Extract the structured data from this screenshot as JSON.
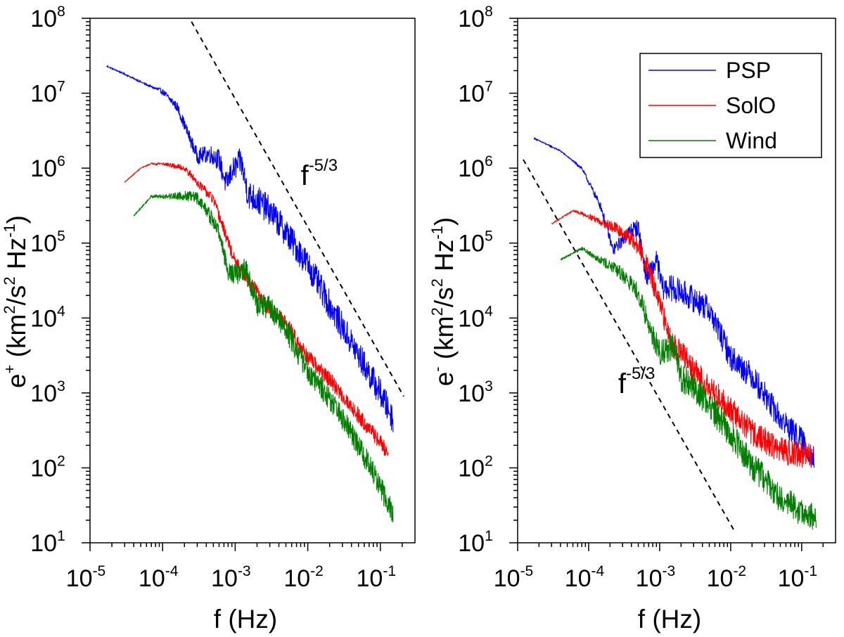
{
  "chart_data": [
    {
      "type": "line",
      "panel": "left",
      "xlabel": "f (Hz)",
      "ylabel": {
        "prefix": "e",
        "sup": "+",
        "unit": "(km",
        "sup2": "2",
        "mid": "/s",
        "sup3": "2",
        "hz": " Hz",
        "sup4": "-1",
        "close": ")"
      },
      "xscale": "log",
      "yscale": "log",
      "xlim": [
        1e-05,
        0.3
      ],
      "ylim": [
        10,
        100000000
      ],
      "xticks": [
        {
          "base": "10",
          "exp": "-5"
        },
        {
          "base": "10",
          "exp": "-4"
        },
        {
          "base": "10",
          "exp": "-3"
        },
        {
          "base": "10",
          "exp": "-2"
        },
        {
          "base": "10",
          "exp": "-1"
        }
      ],
      "yticks": [
        {
          "base": "10",
          "exp": "1"
        },
        {
          "base": "10",
          "exp": "2"
        },
        {
          "base": "10",
          "exp": "3"
        },
        {
          "base": "10",
          "exp": "4"
        },
        {
          "base": "10",
          "exp": "5"
        },
        {
          "base": "10",
          "exp": "6"
        },
        {
          "base": "10",
          "exp": "7"
        },
        {
          "base": "10",
          "exp": "8"
        }
      ],
      "reference_line": {
        "label": "f",
        "label_exp": "-5/3",
        "points": [
          [
            0.00025,
            90000000
          ],
          [
            0.21,
            900
          ]
        ],
        "label_at": [
          0.008,
          600000
        ]
      },
      "series": [
        {
          "name": "PSP",
          "color": "#0000ff",
          "noise": 0.11,
          "fmax": 0.15,
          "points": [
            [
              1.7e-05,
              23000000
            ],
            [
              3e-05,
              18000000
            ],
            [
              6e-05,
              13000000
            ],
            [
              0.0001,
              10500000
            ],
            [
              0.00016,
              6500000
            ],
            [
              0.00022,
              3000000
            ],
            [
              0.0003,
              1450000
            ],
            [
              0.00045,
              1550000
            ],
            [
              0.0006,
              1300000
            ],
            [
              0.00075,
              600000
            ],
            [
              0.0009,
              900000
            ],
            [
              0.0012,
              1250000
            ],
            [
              0.0015,
              450000
            ],
            [
              0.002,
              380000
            ],
            [
              0.003,
              270000
            ],
            [
              0.005,
              140000
            ],
            [
              0.01,
              52000
            ],
            [
              0.02,
              15000
            ],
            [
              0.05,
              3200
            ],
            [
              0.1,
              1000
            ],
            [
              0.15,
              450
            ]
          ]
        },
        {
          "name": "SolO",
          "color": "#ff0000",
          "noise": 0.06,
          "fmax": 0.13,
          "points": [
            [
              3e-05,
              650000
            ],
            [
              5e-05,
              1000000
            ],
            [
              7e-05,
              1150000
            ],
            [
              0.0001,
              1150000
            ],
            [
              0.0002,
              1000000
            ],
            [
              0.0003,
              650000
            ],
            [
              0.0005,
              380000
            ],
            [
              0.0007,
              150000
            ],
            [
              0.001,
              55000
            ],
            [
              0.002,
              22000
            ],
            [
              0.003,
              13000
            ],
            [
              0.005,
              8500
            ],
            [
              0.01,
              3000
            ],
            [
              0.02,
              1500
            ],
            [
              0.05,
              500
            ],
            [
              0.1,
              220
            ],
            [
              0.13,
              150
            ]
          ]
        },
        {
          "name": "Wind",
          "color": "#007f00",
          "noise": 0.09,
          "fmax": 0.15,
          "points": [
            [
              4e-05,
              230000
            ],
            [
              7e-05,
              420000
            ],
            [
              0.0001,
              420000
            ],
            [
              0.0002,
              430000
            ],
            [
              0.0003,
              400000
            ],
            [
              0.0004,
              280000
            ],
            [
              0.0006,
              140000
            ],
            [
              0.0008,
              42000
            ],
            [
              0.001,
              38000
            ],
            [
              0.0014,
              45000
            ],
            [
              0.002,
              15000
            ],
            [
              0.003,
              14000
            ],
            [
              0.005,
              7000
            ],
            [
              0.01,
              2000
            ],
            [
              0.02,
              850
            ],
            [
              0.05,
              200
            ],
            [
              0.1,
              55
            ],
            [
              0.15,
              25
            ]
          ]
        }
      ]
    },
    {
      "type": "line",
      "panel": "right",
      "xlabel": "f (Hz)",
      "ylabel": {
        "prefix": "e",
        "sup": "-",
        "unit": "(km",
        "sup2": "2",
        "mid": "/s",
        "sup3": "2",
        "hz": " Hz",
        "sup4": "-1",
        "close": ")"
      },
      "xscale": "log",
      "yscale": "log",
      "xlim": [
        1e-05,
        0.3
      ],
      "ylim": [
        10,
        100000000
      ],
      "xticks": [
        {
          "base": "10",
          "exp": "-5"
        },
        {
          "base": "10",
          "exp": "-4"
        },
        {
          "base": "10",
          "exp": "-3"
        },
        {
          "base": "10",
          "exp": "-2"
        },
        {
          "base": "10",
          "exp": "-1"
        }
      ],
      "yticks": [
        {
          "base": "10",
          "exp": "1"
        },
        {
          "base": "10",
          "exp": "2"
        },
        {
          "base": "10",
          "exp": "3"
        },
        {
          "base": "10",
          "exp": "4"
        },
        {
          "base": "10",
          "exp": "5"
        },
        {
          "base": "10",
          "exp": "6"
        },
        {
          "base": "10",
          "exp": "7"
        },
        {
          "base": "10",
          "exp": "8"
        }
      ],
      "reference_line": {
        "label": "f",
        "label_exp": "-5/3",
        "points": [
          [
            1.2e-05,
            1300000
          ],
          [
            0.011,
            15
          ]
        ],
        "label_at": [
          0.00026,
          1000
        ]
      },
      "legend": {
        "position": "top-right",
        "entries": [
          "PSP",
          "SolO",
          "Wind"
        ]
      },
      "series": [
        {
          "name": "PSP",
          "color": "#0000ff",
          "noise": 0.1,
          "fmax": 0.15,
          "points": [
            [
              1.7e-05,
              2500000
            ],
            [
              4e-05,
              1700000
            ],
            [
              8e-05,
              1000000
            ],
            [
              0.00015,
              300000
            ],
            [
              0.00022,
              80000
            ],
            [
              0.0003,
              110000
            ],
            [
              0.0004,
              150000
            ],
            [
              0.0005,
              160000
            ],
            [
              0.00065,
              35000
            ],
            [
              0.0008,
              45000
            ],
            [
              0.0009,
              60000
            ],
            [
              0.0011,
              25000
            ],
            [
              0.0015,
              25000
            ],
            [
              0.002,
              22000
            ],
            [
              0.003,
              18000
            ],
            [
              0.005,
              13000
            ],
            [
              0.01,
              3000
            ],
            [
              0.02,
              1700
            ],
            [
              0.05,
              450
            ],
            [
              0.1,
              230
            ],
            [
              0.15,
              130
            ]
          ]
        },
        {
          "name": "SolO",
          "color": "#ff0000",
          "noise": 0.1,
          "fmax": 0.14,
          "points": [
            [
              3e-05,
              180000
            ],
            [
              6e-05,
              270000
            ],
            [
              0.0001,
              230000
            ],
            [
              0.0002,
              170000
            ],
            [
              0.0003,
              140000
            ],
            [
              0.0005,
              90000
            ],
            [
              0.0007,
              45000
            ],
            [
              0.001,
              15000
            ],
            [
              0.0015,
              4500
            ],
            [
              0.002,
              3500
            ],
            [
              0.003,
              2000
            ],
            [
              0.005,
              1200
            ],
            [
              0.01,
              600
            ],
            [
              0.02,
              300
            ],
            [
              0.05,
              170
            ],
            [
              0.1,
              150
            ],
            [
              0.14,
              150
            ]
          ]
        },
        {
          "name": "Wind",
          "color": "#007f00",
          "noise": 0.11,
          "fmax": 0.16,
          "points": [
            [
              4e-05,
              60000
            ],
            [
              8e-05,
              85000
            ],
            [
              0.0001,
              75000
            ],
            [
              0.0002,
              50000
            ],
            [
              0.0003,
              38000
            ],
            [
              0.0005,
              22000
            ],
            [
              0.0007,
              8000
            ],
            [
              0.001,
              3500
            ],
            [
              0.0015,
              4200
            ],
            [
              0.002,
              1600
            ],
            [
              0.003,
              1200
            ],
            [
              0.005,
              700
            ],
            [
              0.01,
              280
            ],
            [
              0.02,
              110
            ],
            [
              0.05,
              40
            ],
            [
              0.1,
              25
            ],
            [
              0.16,
              20
            ]
          ]
        }
      ]
    }
  ]
}
